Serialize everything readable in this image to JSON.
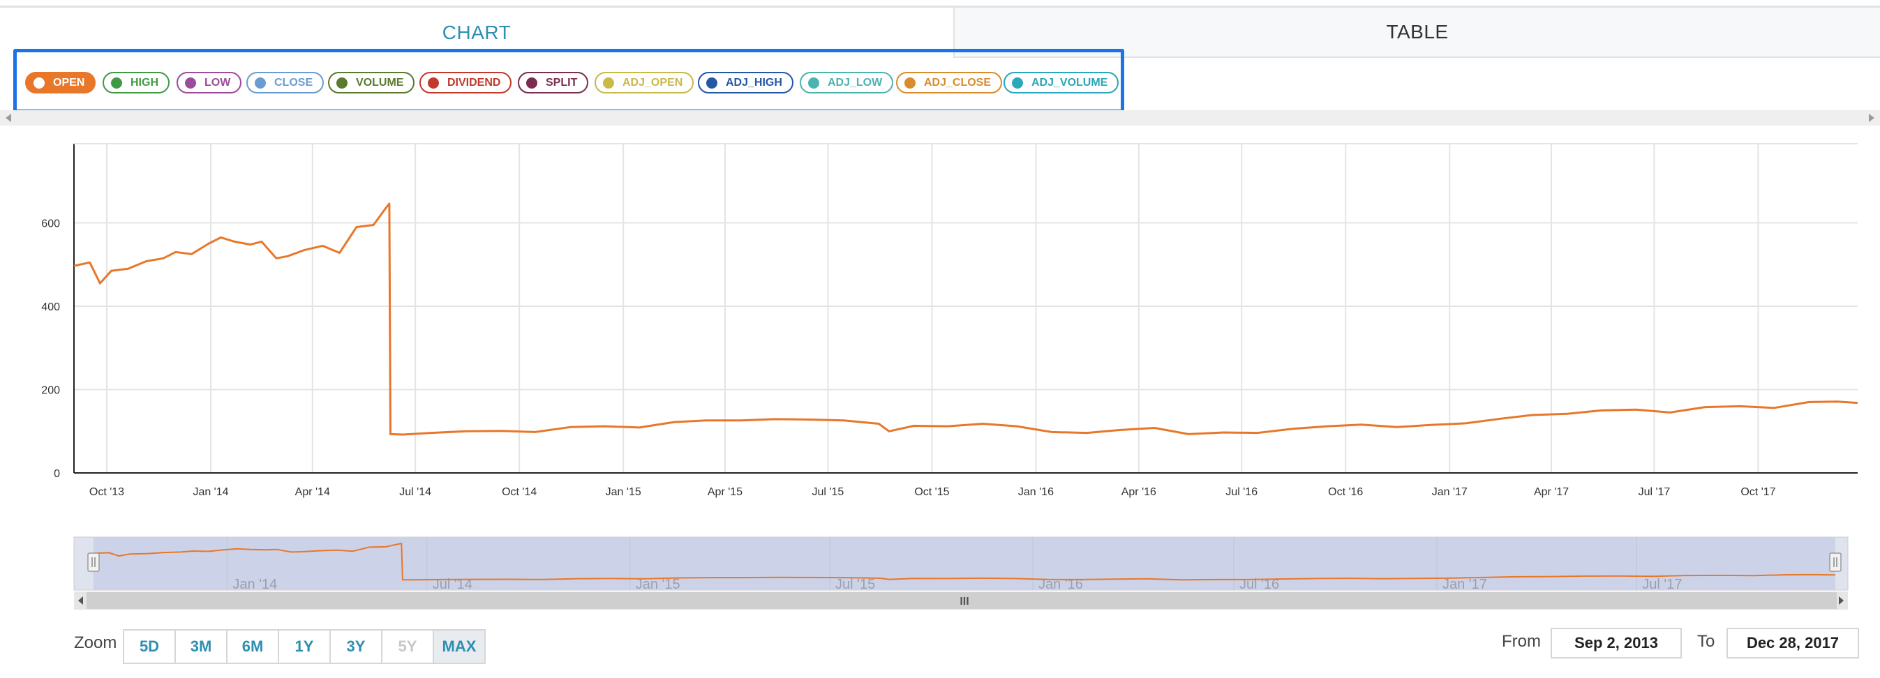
{
  "tabs": {
    "chart": "CHART",
    "table": "TABLE"
  },
  "legend": [
    {
      "label": "OPEN",
      "color": "#e8772a",
      "active": true
    },
    {
      "label": "HIGH",
      "color": "#3f9a46",
      "active": false
    },
    {
      "label": "LOW",
      "color": "#9b4d9b",
      "active": false
    },
    {
      "label": "CLOSE",
      "color": "#6b9bd1",
      "active": false
    },
    {
      "label": "VOLUME",
      "color": "#5a7a2e",
      "active": false
    },
    {
      "label": "DIVIDEND",
      "color": "#c0392b",
      "active": false
    },
    {
      "label": "SPLIT",
      "color": "#7b2d4f",
      "active": false
    },
    {
      "label": "ADJ_OPEN",
      "color": "#c9b84a",
      "active": false
    },
    {
      "label": "ADJ_HIGH",
      "color": "#2557a7",
      "active": false
    },
    {
      "label": "ADJ_LOW",
      "color": "#4bb3b0",
      "active": false
    },
    {
      "label": "ADJ_CLOSE",
      "color": "#d98c2b",
      "active": false
    },
    {
      "label": "ADJ_VOLUME",
      "color": "#2aa7b8",
      "active": false
    }
  ],
  "chart_data": {
    "type": "line",
    "series": [
      {
        "name": "OPEN",
        "color": "#e8772a",
        "points": [
          [
            "2013-09-02",
            497
          ],
          [
            "2013-09-16",
            505
          ],
          [
            "2013-09-25",
            455
          ],
          [
            "2013-10-05",
            485
          ],
          [
            "2013-10-20",
            490
          ],
          [
            "2013-11-05",
            508
          ],
          [
            "2013-11-20",
            515
          ],
          [
            "2013-12-01",
            530
          ],
          [
            "2013-12-15",
            525
          ],
          [
            "2013-12-30",
            550
          ],
          [
            "2014-01-10",
            565
          ],
          [
            "2014-01-22",
            555
          ],
          [
            "2014-02-05",
            548
          ],
          [
            "2014-02-15",
            555
          ],
          [
            "2014-02-28",
            515
          ],
          [
            "2014-03-10",
            520
          ],
          [
            "2014-03-25",
            535
          ],
          [
            "2014-04-10",
            545
          ],
          [
            "2014-04-25",
            528
          ],
          [
            "2014-05-10",
            590
          ],
          [
            "2014-05-25",
            595
          ],
          [
            "2014-06-05",
            636
          ],
          [
            "2014-06-08",
            646
          ],
          [
            "2014-06-09",
            93
          ],
          [
            "2014-06-20",
            92
          ],
          [
            "2014-07-15",
            96
          ],
          [
            "2014-08-15",
            100
          ],
          [
            "2014-09-15",
            101
          ],
          [
            "2014-10-15",
            98
          ],
          [
            "2014-11-15",
            110
          ],
          [
            "2014-12-15",
            112
          ],
          [
            "2015-01-15",
            109
          ],
          [
            "2015-02-15",
            122
          ],
          [
            "2015-03-15",
            126
          ],
          [
            "2015-04-15",
            126
          ],
          [
            "2015-05-15",
            129
          ],
          [
            "2015-06-15",
            128
          ],
          [
            "2015-07-15",
            126
          ],
          [
            "2015-08-15",
            118
          ],
          [
            "2015-08-24",
            100
          ],
          [
            "2015-09-15",
            113
          ],
          [
            "2015-10-15",
            112
          ],
          [
            "2015-11-15",
            118
          ],
          [
            "2015-12-15",
            112
          ],
          [
            "2016-01-15",
            98
          ],
          [
            "2016-02-15",
            96
          ],
          [
            "2016-03-15",
            103
          ],
          [
            "2016-04-15",
            108
          ],
          [
            "2016-05-15",
            93
          ],
          [
            "2016-06-15",
            97
          ],
          [
            "2016-07-15",
            96
          ],
          [
            "2016-08-15",
            106
          ],
          [
            "2016-09-15",
            112
          ],
          [
            "2016-10-15",
            116
          ],
          [
            "2016-11-15",
            110
          ],
          [
            "2016-12-15",
            115
          ],
          [
            "2017-01-15",
            119
          ],
          [
            "2017-02-15",
            130
          ],
          [
            "2017-03-15",
            139
          ],
          [
            "2017-04-15",
            142
          ],
          [
            "2017-05-15",
            150
          ],
          [
            "2017-06-15",
            152
          ],
          [
            "2017-07-15",
            145
          ],
          [
            "2017-08-15",
            158
          ],
          [
            "2017-09-15",
            160
          ],
          [
            "2017-10-15",
            156
          ],
          [
            "2017-11-15",
            170
          ],
          [
            "2017-12-10",
            171
          ],
          [
            "2017-12-28",
            168
          ]
        ]
      }
    ],
    "y_ticks": [
      0,
      200,
      400,
      600
    ],
    "ylim": [
      0,
      790
    ],
    "xlim": [
      "2013-09-02",
      "2017-12-28"
    ],
    "x_ticks": [
      {
        "date": "2013-10-01",
        "label": "Oct '13"
      },
      {
        "date": "2014-01-01",
        "label": "Jan '14"
      },
      {
        "date": "2014-04-01",
        "label": "Apr '14"
      },
      {
        "date": "2014-07-01",
        "label": "Jul '14"
      },
      {
        "date": "2014-10-01",
        "label": "Oct '14"
      },
      {
        "date": "2015-01-01",
        "label": "Jan '15"
      },
      {
        "date": "2015-04-01",
        "label": "Apr '15"
      },
      {
        "date": "2015-07-01",
        "label": "Jul '15"
      },
      {
        "date": "2015-10-01",
        "label": "Oct '15"
      },
      {
        "date": "2016-01-01",
        "label": "Jan '16"
      },
      {
        "date": "2016-04-01",
        "label": "Apr '16"
      },
      {
        "date": "2016-07-01",
        "label": "Jul '16"
      },
      {
        "date": "2016-10-01",
        "label": "Oct '16"
      },
      {
        "date": "2017-01-01",
        "label": "Jan '17"
      },
      {
        "date": "2017-04-01",
        "label": "Apr '17"
      },
      {
        "date": "2017-07-01",
        "label": "Jul '17"
      },
      {
        "date": "2017-10-01",
        "label": "Oct '17"
      }
    ],
    "navigator_ticks": [
      {
        "date": "2014-01-01",
        "label": "Jan '14"
      },
      {
        "date": "2014-07-01",
        "label": "Jul '14"
      },
      {
        "date": "2015-01-01",
        "label": "Jan '15"
      },
      {
        "date": "2015-07-01",
        "label": "Jul '15"
      },
      {
        "date": "2016-01-01",
        "label": "Jan '16"
      },
      {
        "date": "2016-07-01",
        "label": "Jul '16"
      },
      {
        "date": "2017-01-01",
        "label": "Jan '17"
      },
      {
        "date": "2017-07-01",
        "label": "Jul '17"
      }
    ],
    "grid": true,
    "legend": "top"
  },
  "navigator": {
    "scroll_grip": "III"
  },
  "zoom": {
    "label": "Zoom",
    "buttons": [
      {
        "label": "5D",
        "state": "normal"
      },
      {
        "label": "3M",
        "state": "normal"
      },
      {
        "label": "6M",
        "state": "normal"
      },
      {
        "label": "1Y",
        "state": "normal"
      },
      {
        "label": "3Y",
        "state": "normal"
      },
      {
        "label": "5Y",
        "state": "disabled"
      },
      {
        "label": "MAX",
        "state": "active"
      }
    ]
  },
  "range": {
    "from_label": "From",
    "from_value": "Sep 2, 2013",
    "to_label": "To",
    "to_value": "Dec 28, 2017"
  }
}
